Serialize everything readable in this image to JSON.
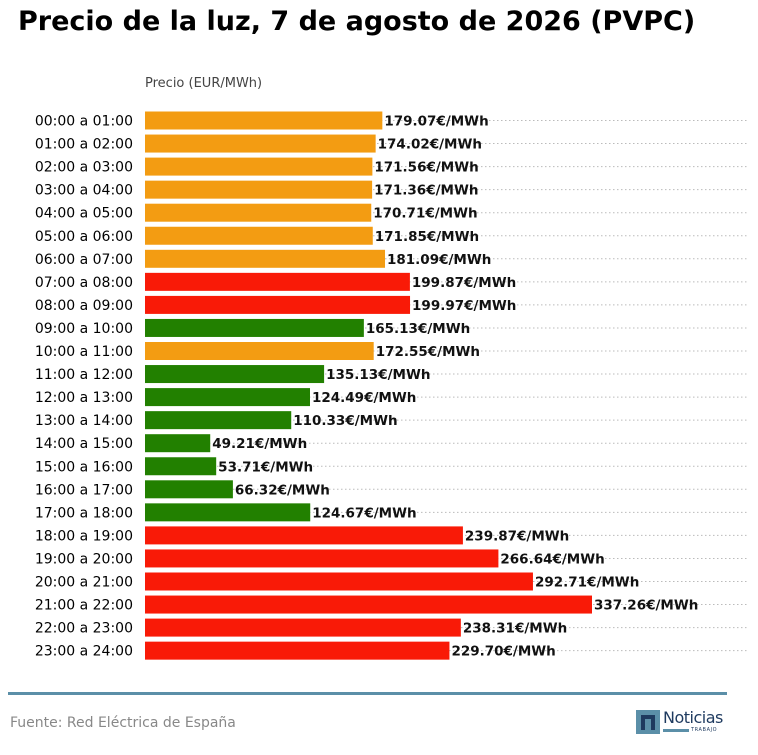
{
  "chart_data": {
    "type": "bar",
    "orientation": "horizontal",
    "title": "Precio de la luz, 7 de agosto de 2026 (PVPC)",
    "xlabel": "Precio (EUR/MWh)",
    "unit_suffix": "€/MWh",
    "xlim": [
      0,
      360
    ],
    "grid": "dotted horizontal row guides",
    "categories": [
      "00:00 a 01:00",
      "01:00 a 02:00",
      "02:00 a 03:00",
      "03:00 a 04:00",
      "04:00 a 05:00",
      "05:00 a 06:00",
      "06:00 a 07:00",
      "07:00 a 08:00",
      "08:00 a 09:00",
      "09:00 a 10:00",
      "10:00 a 11:00",
      "11:00 a 12:00",
      "12:00 a 13:00",
      "13:00 a 14:00",
      "14:00 a 15:00",
      "15:00 a 16:00",
      "16:00 a 17:00",
      "17:00 a 18:00",
      "18:00 a 19:00",
      "19:00 a 20:00",
      "20:00 a 21:00",
      "21:00 a 22:00",
      "22:00 a 23:00",
      "23:00 a 24:00"
    ],
    "values": [
      179.07,
      174.02,
      171.56,
      171.36,
      170.71,
      171.85,
      181.09,
      199.87,
      199.97,
      165.13,
      172.55,
      135.13,
      124.49,
      110.33,
      49.21,
      53.71,
      66.32,
      124.67,
      239.87,
      266.64,
      292.71,
      337.26,
      238.31,
      229.7
    ],
    "value_labels": [
      "179.07€/MWh",
      "174.02€/MWh",
      "171.56€/MWh",
      "171.36€/MWh",
      "170.71€/MWh",
      "171.85€/MWh",
      "181.09€/MWh",
      "199.87€/MWh",
      "199.97€/MWh",
      "165.13€/MWh",
      "172.55€/MWh",
      "135.13€/MWh",
      "124.49€/MWh",
      "110.33€/MWh",
      "49.21€/MWh",
      "53.71€/MWh",
      "66.32€/MWh",
      "124.67€/MWh",
      "239.87€/MWh",
      "266.64€/MWh",
      "292.71€/MWh",
      "337.26€/MWh",
      "238.31€/MWh",
      "229.70€/MWh"
    ],
    "price_levels": [
      "mid",
      "mid",
      "mid",
      "mid",
      "mid",
      "mid",
      "mid",
      "high",
      "high",
      "low",
      "mid",
      "low",
      "low",
      "low",
      "low",
      "low",
      "low",
      "low",
      "high",
      "high",
      "high",
      "high",
      "high",
      "high"
    ],
    "colors": {
      "low": "#228000",
      "mid": "#f39c12",
      "high": "#f91a07",
      "grid": "#bbbbbb",
      "label": "#111111"
    }
  },
  "footer": {
    "source": "Fuente: Red Eléctrica de España",
    "logo_word": "Noticias",
    "logo_subword": "TRABAJO",
    "rule_color": "#5b8fa8"
  }
}
